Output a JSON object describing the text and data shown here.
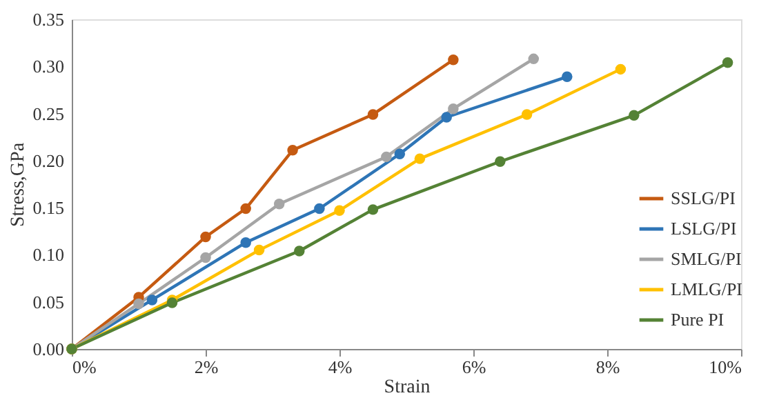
{
  "chart_data": {
    "type": "line",
    "xlabel": "Strain",
    "ylabel": "Stress,GPa",
    "xlim": [
      0,
      10
    ],
    "xticks": [
      {
        "value": 0,
        "label": "0%"
      },
      {
        "value": 2,
        "label": "2%"
      },
      {
        "value": 4,
        "label": "4%"
      },
      {
        "value": 6,
        "label": "6%"
      },
      {
        "value": 8,
        "label": "8%"
      },
      {
        "value": 10,
        "label": "10%"
      }
    ],
    "ylim": [
      0,
      0.35
    ],
    "yticks": [
      {
        "value": 0,
        "label": "0.00"
      },
      {
        "value": 0.05,
        "label": "0.05"
      },
      {
        "value": 0.1,
        "label": "0.10"
      },
      {
        "value": 0.15,
        "label": "0.15"
      },
      {
        "value": 0.2,
        "label": "0.20"
      },
      {
        "value": 0.25,
        "label": "0.25"
      },
      {
        "value": 0.3,
        "label": "0.30"
      },
      {
        "value": 0.35,
        "label": "0.35"
      }
    ],
    "grid": false,
    "legend": "right",
    "marker": "circle",
    "line_style": "solid",
    "series": [
      {
        "name": "SSLG/PI",
        "color": "#c55a11",
        "x": [
          0,
          1.0,
          2.0,
          2.6,
          3.3,
          4.5,
          5.7
        ],
        "values": [
          0,
          0.055,
          0.119,
          0.149,
          0.211,
          0.249,
          0.307
        ]
      },
      {
        "name": "LSLG/PI",
        "color": "#2e75b6",
        "x": [
          0,
          1.2,
          2.6,
          3.7,
          4.9,
          5.6,
          7.4
        ],
        "values": [
          0,
          0.052,
          0.113,
          0.149,
          0.207,
          0.246,
          0.289
        ]
      },
      {
        "name": "SMLG/PI",
        "color": "#a5a5a5",
        "x": [
          0,
          1.0,
          2.0,
          3.1,
          4.7,
          5.7,
          6.9
        ],
        "values": [
          0,
          0.048,
          0.097,
          0.154,
          0.204,
          0.255,
          0.308
        ]
      },
      {
        "name": "LMLG/PI",
        "color": "#ffc000",
        "x": [
          0,
          1.5,
          2.8,
          4.0,
          5.2,
          6.8,
          8.2
        ],
        "values": [
          0,
          0.052,
          0.105,
          0.147,
          0.202,
          0.249,
          0.297
        ]
      },
      {
        "name": "Pure PI",
        "color": "#548235",
        "x": [
          0,
          1.5,
          3.4,
          4.5,
          6.4,
          8.4,
          9.8
        ],
        "values": [
          0,
          0.049,
          0.104,
          0.148,
          0.199,
          0.248,
          0.304
        ]
      }
    ]
  }
}
